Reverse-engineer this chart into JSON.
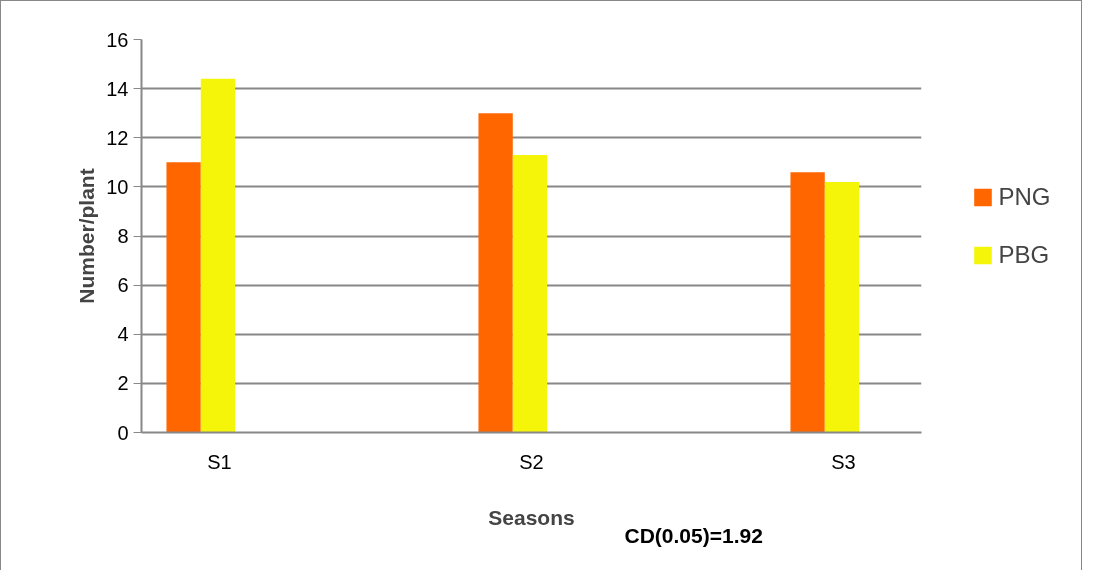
{
  "chart_data": {
    "type": "bar",
    "xlabel": "Seasons",
    "ylabel": "Number/plant",
    "categories": [
      "S1",
      null,
      "S2",
      null,
      "S3"
    ],
    "series": [
      {
        "name": "PNG",
        "color": "#ff6600",
        "values": [
          11.0,
          null,
          13.0,
          null,
          10.6
        ]
      },
      {
        "name": "PBG",
        "color": "#f5f50a",
        "values": [
          14.4,
          null,
          11.3,
          null,
          10.2
        ]
      }
    ],
    "ylim": [
      0,
      16
    ],
    "yticks": [
      0,
      2,
      4,
      6,
      8,
      10,
      12,
      14,
      16
    ],
    "grid": "y",
    "legend": "right",
    "annotations": [
      "CD(0.05)=1.92"
    ]
  }
}
